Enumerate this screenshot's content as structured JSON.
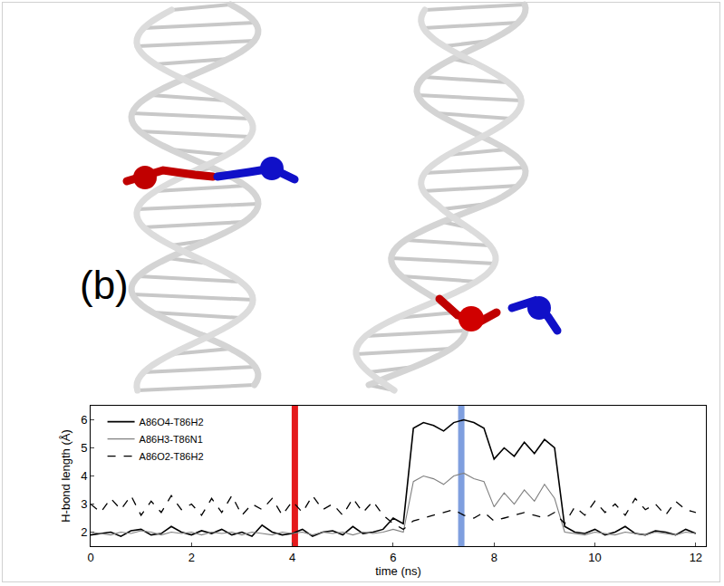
{
  "panel_label": "(b)",
  "chart_data": {
    "type": "line",
    "x_label": "time (ns)",
    "y_label": "H-bond length (Å)",
    "x": [
      0,
      0.2,
      0.4,
      0.6,
      0.8,
      1.0,
      1.2,
      1.4,
      1.6,
      1.8,
      2.0,
      2.2,
      2.4,
      2.6,
      2.8,
      3.0,
      3.2,
      3.4,
      3.6,
      3.8,
      4.0,
      4.2,
      4.4,
      4.6,
      4.8,
      5.0,
      5.2,
      5.4,
      5.6,
      5.8,
      6.0,
      6.2,
      6.4,
      6.6,
      6.8,
      7.0,
      7.2,
      7.4,
      7.6,
      7.8,
      8.0,
      8.2,
      8.4,
      8.6,
      8.8,
      9.0,
      9.2,
      9.4,
      9.6,
      9.8,
      10.0,
      10.2,
      10.4,
      10.6,
      10.8,
      11.0,
      11.2,
      11.4,
      11.6,
      11.8,
      12.0
    ],
    "series": [
      {
        "name": "A86O4-T86H2",
        "color": "#000000",
        "line_style": "solid",
        "values": [
          1.9,
          1.95,
          2.0,
          1.85,
          2.05,
          2.1,
          1.9,
          1.95,
          2.2,
          2.0,
          1.9,
          2.05,
          1.95,
          2.1,
          1.9,
          2.0,
          1.85,
          2.25,
          2.0,
          1.9,
          1.95,
          2.1,
          1.85,
          2.0,
          2.05,
          1.9,
          2.2,
          1.95,
          2.0,
          2.1,
          2.5,
          2.3,
          5.7,
          5.9,
          5.8,
          5.6,
          5.9,
          6.0,
          5.9,
          5.7,
          4.6,
          5.0,
          4.7,
          5.2,
          4.8,
          5.3,
          5.0,
          2.2,
          2.0,
          1.95,
          2.1,
          1.9,
          2.0,
          2.2,
          1.95,
          1.9,
          2.05,
          2.0,
          1.9,
          2.1,
          1.95
        ]
      },
      {
        "name": "A86H3-T86N1",
        "color": "#808080",
        "line_style": "solid",
        "values": [
          2.0,
          1.95,
          1.9,
          2.0,
          1.95,
          2.05,
          2.0,
          1.9,
          2.0,
          1.95,
          2.0,
          1.9,
          2.0,
          1.95,
          2.0,
          1.9,
          2.0,
          1.95,
          1.9,
          2.0,
          1.95,
          2.0,
          1.9,
          2.0,
          1.95,
          2.0,
          1.9,
          2.0,
          1.95,
          2.0,
          2.1,
          2.0,
          3.8,
          4.0,
          3.9,
          3.7,
          4.0,
          4.1,
          3.9,
          3.8,
          2.9,
          3.4,
          3.0,
          3.5,
          3.1,
          3.7,
          3.2,
          2.0,
          1.95,
          1.9,
          2.0,
          1.95,
          1.9,
          2.0,
          1.95,
          1.9,
          2.0,
          1.95,
          1.9,
          2.0,
          1.95
        ]
      },
      {
        "name": "A86O2-T86H2",
        "color": "#000000",
        "line_style": "dashed",
        "values": [
          3.0,
          2.7,
          3.2,
          2.8,
          3.3,
          2.6,
          3.1,
          2.7,
          3.3,
          2.8,
          3.0,
          2.6,
          3.2,
          2.7,
          3.3,
          2.6,
          3.0,
          2.8,
          3.2,
          2.6,
          3.1,
          2.7,
          3.3,
          2.8,
          3.0,
          2.6,
          3.2,
          2.7,
          3.1,
          2.6,
          2.3,
          2.1,
          2.4,
          2.5,
          2.6,
          2.7,
          2.8,
          2.6,
          2.5,
          2.7,
          2.4,
          2.5,
          2.6,
          2.7,
          2.6,
          2.5,
          2.7,
          2.3,
          2.9,
          2.6,
          3.1,
          2.7,
          3.0,
          2.6,
          3.2,
          2.8,
          3.0,
          2.6,
          3.1,
          2.8,
          2.7
        ]
      }
    ],
    "highlights": [
      {
        "x": 4.05,
        "color": "#e41a1c"
      },
      {
        "x": 7.35,
        "color": "#7f9fdf"
      }
    ],
    "xlim": [
      0,
      12.2
    ],
    "xticks": [
      0,
      2,
      4,
      6,
      8,
      10,
      12
    ],
    "ylim": [
      1.5,
      6.5
    ],
    "yticks": [
      2,
      3,
      4,
      5,
      6
    ],
    "grid": false,
    "legend": "top-left"
  }
}
